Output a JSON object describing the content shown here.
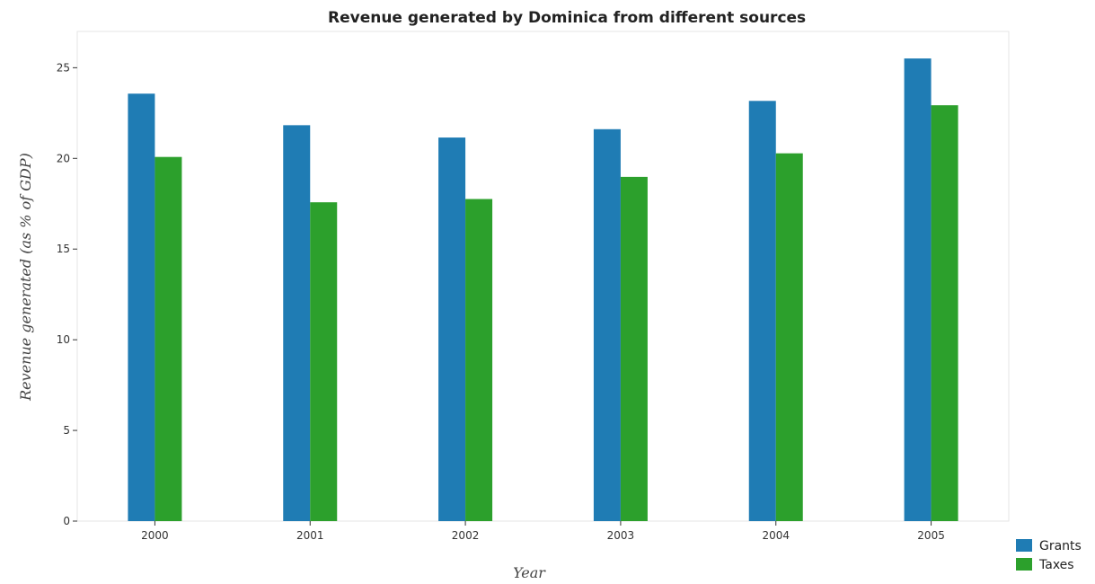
{
  "chart_data": {
    "type": "bar",
    "title": "Revenue generated by Dominica from different sources",
    "xlabel": "Year",
    "ylabel": "Revenue generated (as % of GDP)",
    "categories": [
      "2000",
      "2001",
      "2002",
      "2003",
      "2004",
      "2005"
    ],
    "series": [
      {
        "name": "Grants",
        "color": "#1f7cb4",
        "values": [
          23.57,
          21.83,
          21.15,
          21.61,
          23.17,
          25.51
        ]
      },
      {
        "name": "Taxes",
        "color": "#2ca02c",
        "values": [
          20.08,
          17.58,
          17.76,
          18.98,
          20.28,
          22.93
        ]
      }
    ],
    "ylim": [
      0,
      27
    ],
    "yticks": [
      0,
      5,
      10,
      15,
      20,
      25
    ],
    "grid": false,
    "legend_position": "bottom-right"
  }
}
